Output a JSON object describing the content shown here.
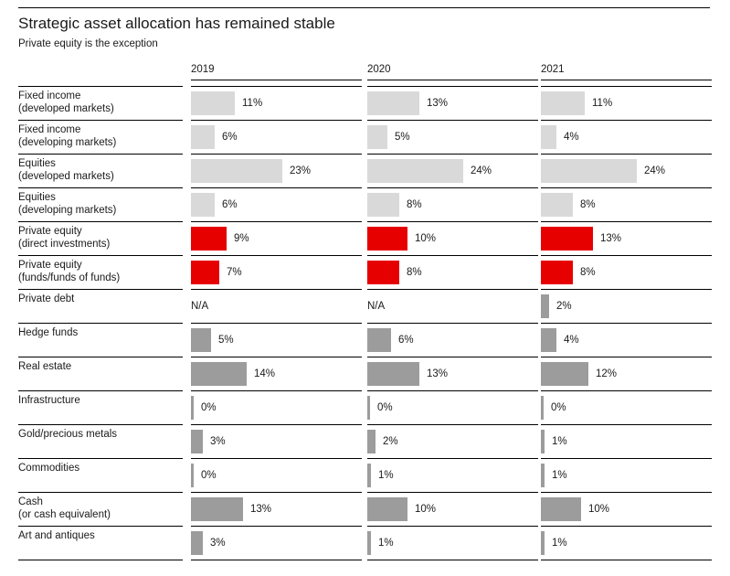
{
  "title": "Strategic asset allocation has remained stable",
  "subtitle": "Private equity is the exception",
  "colors": {
    "traditional": "#d9d9d9",
    "private_equity": "#e60000",
    "alternative": "#9c9c9c",
    "line": "#000000",
    "text": "#1a1a1a"
  },
  "chart_data": {
    "type": "bar",
    "orientation": "horizontal",
    "unit": "%",
    "title": "Strategic asset allocation has remained stable",
    "subtitle": "Private equity is the exception",
    "legend_position": "none",
    "grid": false,
    "xlim_percent": [
      0,
      28
    ],
    "years": [
      "2019",
      "2020",
      "2021"
    ],
    "na_text": "N/A",
    "rows": [
      {
        "label": "Fixed income",
        "sublabel": "(developed markets)",
        "group": "traditional",
        "values": [
          11,
          13,
          11
        ]
      },
      {
        "label": "Fixed income",
        "sublabel": "(developing markets)",
        "group": "traditional",
        "values": [
          6,
          5,
          4
        ]
      },
      {
        "label": "Equities",
        "sublabel": "(developed markets)",
        "group": "traditional",
        "values": [
          23,
          24,
          24
        ]
      },
      {
        "label": "Equities",
        "sublabel": "(developing markets)",
        "group": "traditional",
        "values": [
          6,
          8,
          8
        ]
      },
      {
        "label": "Private equity",
        "sublabel": "(direct investments)",
        "group": "private_equity",
        "values": [
          9,
          10,
          13
        ]
      },
      {
        "label": "Private equity",
        "sublabel": "(funds/funds of funds)",
        "group": "private_equity",
        "values": [
          7,
          8,
          8
        ]
      },
      {
        "label": "Private debt",
        "sublabel": "",
        "group": "alternative",
        "values": [
          null,
          null,
          2
        ],
        "display": [
          "N/A",
          "N/A",
          "2%"
        ]
      },
      {
        "label": "Hedge funds",
        "sublabel": "",
        "group": "alternative",
        "values": [
          5,
          6,
          4
        ]
      },
      {
        "label": "Real estate",
        "sublabel": "",
        "group": "alternative",
        "values": [
          14,
          13,
          12
        ]
      },
      {
        "label": "Infrastructure",
        "sublabel": "",
        "group": "alternative",
        "values": [
          0,
          0,
          0
        ]
      },
      {
        "label": "Gold/precious metals",
        "sublabel": "",
        "group": "alternative",
        "values": [
          3,
          2,
          1
        ]
      },
      {
        "label": "Commodities",
        "sublabel": "",
        "group": "alternative",
        "values": [
          0,
          1,
          1
        ]
      },
      {
        "label": "Cash",
        "sublabel": "(or cash equivalent)",
        "group": "alternative",
        "values": [
          13,
          10,
          10
        ]
      },
      {
        "label": "Art and antiques",
        "sublabel": "",
        "group": "alternative",
        "values": [
          3,
          1,
          1
        ]
      }
    ]
  }
}
